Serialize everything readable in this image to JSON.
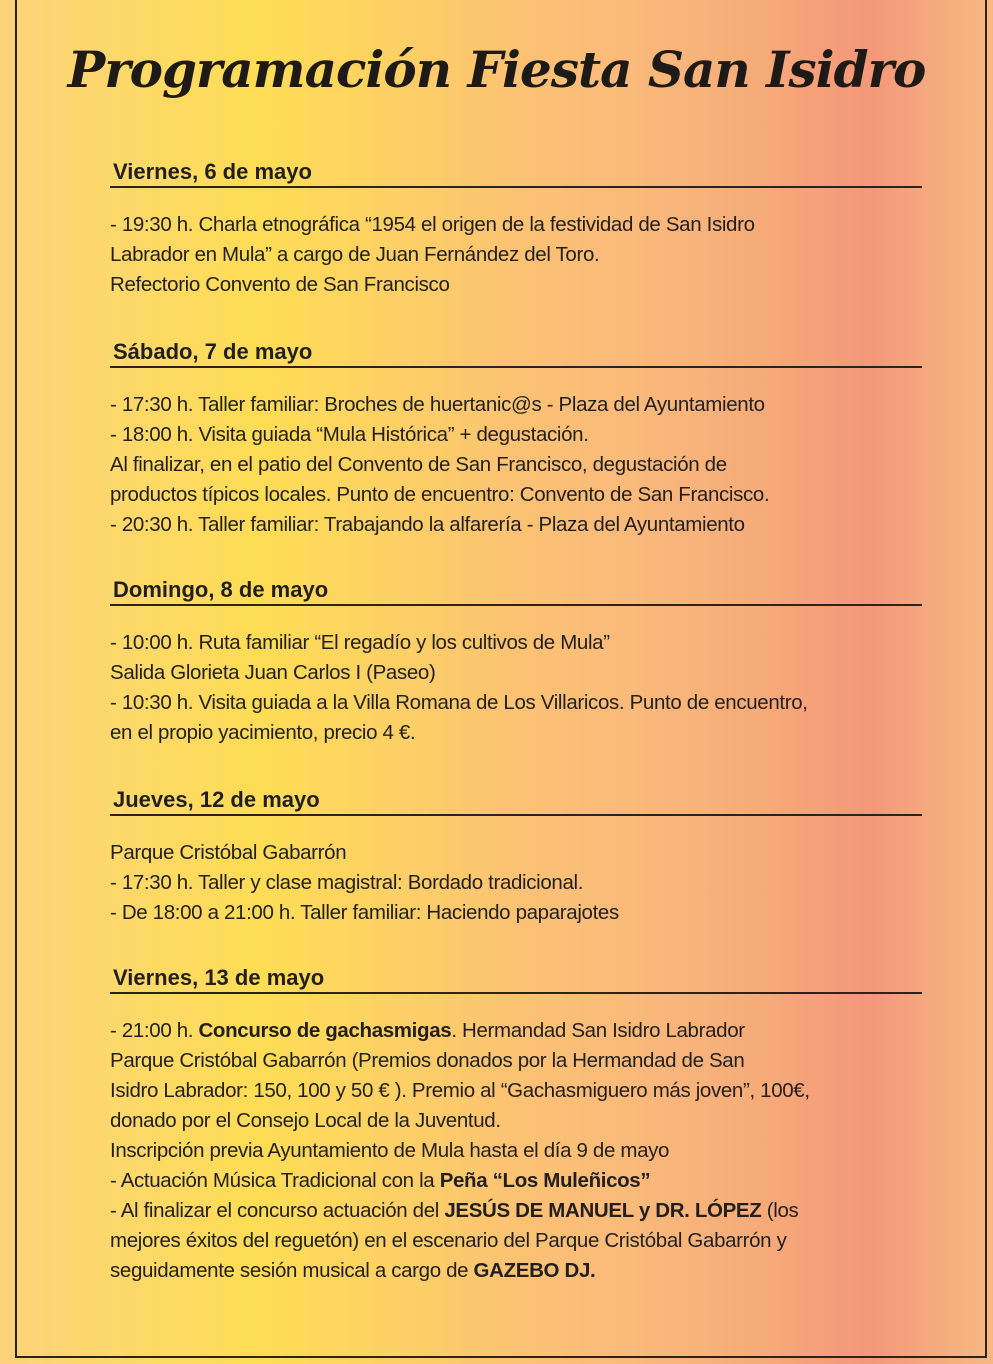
{
  "title": "Programación Fiesta San Isidro",
  "sections": [
    {
      "heading": "Viernes, 6 de mayo",
      "lines": [
        [
          {
            "t": "- 19:30 h. Charla etnográfica  “1954 el origen de la festividad de San Isidro"
          }
        ],
        [
          {
            "t": "Labrador en Mula”  a cargo de Juan Fernández del Toro."
          }
        ],
        [
          {
            "t": "Refectorio Convento de San Francisco"
          }
        ]
      ]
    },
    {
      "heading": "Sábado, 7 de mayo",
      "lines": [
        [
          {
            "t": "- 17:30 h.  Taller familiar: Broches de huertanic@s - Plaza del Ayuntamiento"
          }
        ],
        [
          {
            "t": "- 18:00 h. Visita guiada “Mula Histórica” + degustación."
          }
        ],
        [
          {
            "t": "Al finalizar, en el patio del Convento de San Francisco, degustación de"
          }
        ],
        [
          {
            "t": "productos típicos locales. Punto de encuentro: Convento de San Francisco."
          }
        ],
        [
          {
            "t": "- 20:30 h. Taller familiar: Trabajando la alfarería - Plaza del Ayuntamiento"
          }
        ]
      ]
    },
    {
      "heading": "Domingo, 8 de mayo",
      "lines": [
        [
          {
            "t": "- 10:00 h. Ruta familiar “El regadío y los cultivos de Mula”"
          }
        ],
        [
          {
            "t": "Salida Glorieta Juan Carlos I (Paseo)"
          }
        ],
        [
          {
            "t": "- 10:30 h. Visita guiada a la Villa Romana de Los Villaricos. Punto de encuentro,"
          }
        ],
        [
          {
            "t": "en el propio yacimiento, precio 4 €."
          }
        ]
      ]
    },
    {
      "heading": "Jueves, 12 de mayo",
      "lines": [
        [
          {
            "t": "Parque Cristóbal Gabarrón"
          }
        ],
        [
          {
            "t": "- 17:30 h. Taller y clase magistral: Bordado tradicional."
          }
        ],
        [
          {
            "t": "-  De 18:00 a 21:00 h. Taller familiar: Haciendo paparajotes"
          }
        ]
      ]
    },
    {
      "heading": "Viernes, 13 de mayo",
      "lines": [
        [
          {
            "t": "- 21:00 h. "
          },
          {
            "t": "Concurso de gachasmigas",
            "b": true
          },
          {
            "t": ". Hermandad San Isidro Labrador"
          }
        ],
        [
          {
            "t": "Parque Cristóbal Gabarrón  (Premios donados por la Hermandad de San"
          }
        ],
        [
          {
            "t": "Isidro Labrador: 150, 100 y 50 € ). Premio al “Gachasmiguero más joven”, 100€,"
          }
        ],
        [
          {
            "t": "donado por el Consejo Local de la Juventud."
          }
        ],
        [
          {
            "t": "Inscripción previa Ayuntamiento de Mula hasta el día 9 de mayo"
          }
        ],
        [
          {
            "t": "- Actuación Música Tradicional con la "
          },
          {
            "t": "Peña “Los Muleñicos”",
            "b": true
          }
        ],
        [
          {
            "t": "- Al finalizar el concurso actuación del "
          },
          {
            "t": "JESÚS DE MANUEL y DR. LÓPEZ",
            "b": true
          },
          {
            "t": " (los"
          }
        ],
        [
          {
            "t": "mejores éxitos del reguetón) en el escenario del Parque Cristóbal Gabarrón y"
          }
        ],
        [
          {
            "t": "seguidamente sesión musical a cargo de "
          },
          {
            "t": "GAZEBO DJ.",
            "b": true
          }
        ]
      ]
    }
  ]
}
